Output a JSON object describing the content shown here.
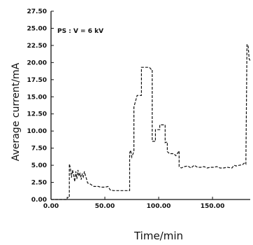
{
  "chart_data": {
    "type": "line",
    "xlabel": "Time/min",
    "ylabel": "Average current/mA",
    "annotation": "PS : V = 6 kV",
    "xlim": [
      0,
      185
    ],
    "ylim": [
      0,
      27.5
    ],
    "xticks": [
      0,
      50,
      100,
      150
    ],
    "xtick_labels": [
      "0.00",
      "50.00",
      "100.00",
      "150.00"
    ],
    "yticks": [
      0,
      2.5,
      5,
      7.5,
      10,
      12.5,
      15,
      17.5,
      20,
      22.5,
      25,
      27.5
    ],
    "ytick_labels": [
      "0.00",
      "2.50",
      "5.00",
      "7.50",
      "10.00",
      "12.50",
      "15.00",
      "17.50",
      "20.00",
      "22.50",
      "25.00",
      "27.50"
    ],
    "grid": false,
    "line_style": "dashed",
    "series": [
      {
        "values": [
          [
            0,
            0
          ],
          [
            15,
            0
          ],
          [
            15,
            0.3
          ],
          [
            17,
            0.3
          ],
          [
            17,
            5.2
          ],
          [
            18,
            4.6
          ],
          [
            19,
            3.2
          ],
          [
            20,
            4.3
          ],
          [
            21,
            3.6
          ],
          [
            22,
            2.6
          ],
          [
            23,
            4.1
          ],
          [
            24,
            3.0
          ],
          [
            25,
            4.3
          ],
          [
            26,
            3.4
          ],
          [
            27,
            3.9
          ],
          [
            28,
            2.9
          ],
          [
            29,
            3.7
          ],
          [
            30,
            3.3
          ],
          [
            31,
            4.1
          ],
          [
            32,
            3.5
          ],
          [
            33,
            3.0
          ],
          [
            34,
            2.4
          ],
          [
            36,
            2.3
          ],
          [
            38,
            2.1
          ],
          [
            40,
            1.9
          ],
          [
            44,
            1.9
          ],
          [
            46,
            1.8
          ],
          [
            50,
            1.8
          ],
          [
            53,
            1.9
          ],
          [
            55,
            1.4
          ],
          [
            58,
            1.3
          ],
          [
            62,
            1.3
          ],
          [
            66,
            1.3
          ],
          [
            70,
            1.3
          ],
          [
            73,
            1.3
          ],
          [
            73,
            6.8
          ],
          [
            74,
            7.2
          ],
          [
            75,
            6.2
          ],
          [
            77,
            7.0
          ],
          [
            77,
            13.5
          ],
          [
            80,
            15.2
          ],
          [
            84,
            15.2
          ],
          [
            84,
            19.3
          ],
          [
            91,
            19.3
          ],
          [
            92,
            19.2
          ],
          [
            93,
            19.0
          ],
          [
            94,
            19.0
          ],
          [
            94,
            8.5
          ],
          [
            97,
            8.5
          ],
          [
            97,
            10.2
          ],
          [
            101,
            10.2
          ],
          [
            101,
            10.9
          ],
          [
            106,
            10.9
          ],
          [
            106,
            8.3
          ],
          [
            108,
            8.4
          ],
          [
            108,
            7.0
          ],
          [
            110,
            6.7
          ],
          [
            112,
            6.7
          ],
          [
            114,
            6.7
          ],
          [
            116,
            6.4
          ],
          [
            119,
            7.1
          ],
          [
            119,
            4.8
          ],
          [
            121,
            4.6
          ],
          [
            124,
            4.8
          ],
          [
            127,
            4.9
          ],
          [
            130,
            4.6
          ],
          [
            133,
            5.0
          ],
          [
            136,
            4.7
          ],
          [
            139,
            4.7
          ],
          [
            142,
            4.8
          ],
          [
            145,
            4.6
          ],
          [
            148,
            4.7
          ],
          [
            151,
            4.7
          ],
          [
            154,
            4.8
          ],
          [
            157,
            4.6
          ],
          [
            160,
            4.6
          ],
          [
            164,
            4.7
          ],
          [
            168,
            4.6
          ],
          [
            170,
            5.0
          ],
          [
            172,
            4.9
          ],
          [
            175,
            5.0
          ],
          [
            178,
            5.1
          ],
          [
            180,
            5.4
          ],
          [
            181,
            5.2
          ],
          [
            182,
            22.6
          ],
          [
            183,
            22.6
          ],
          [
            184,
            20.5
          ],
          [
            185,
            20.3
          ]
        ]
      }
    ]
  }
}
